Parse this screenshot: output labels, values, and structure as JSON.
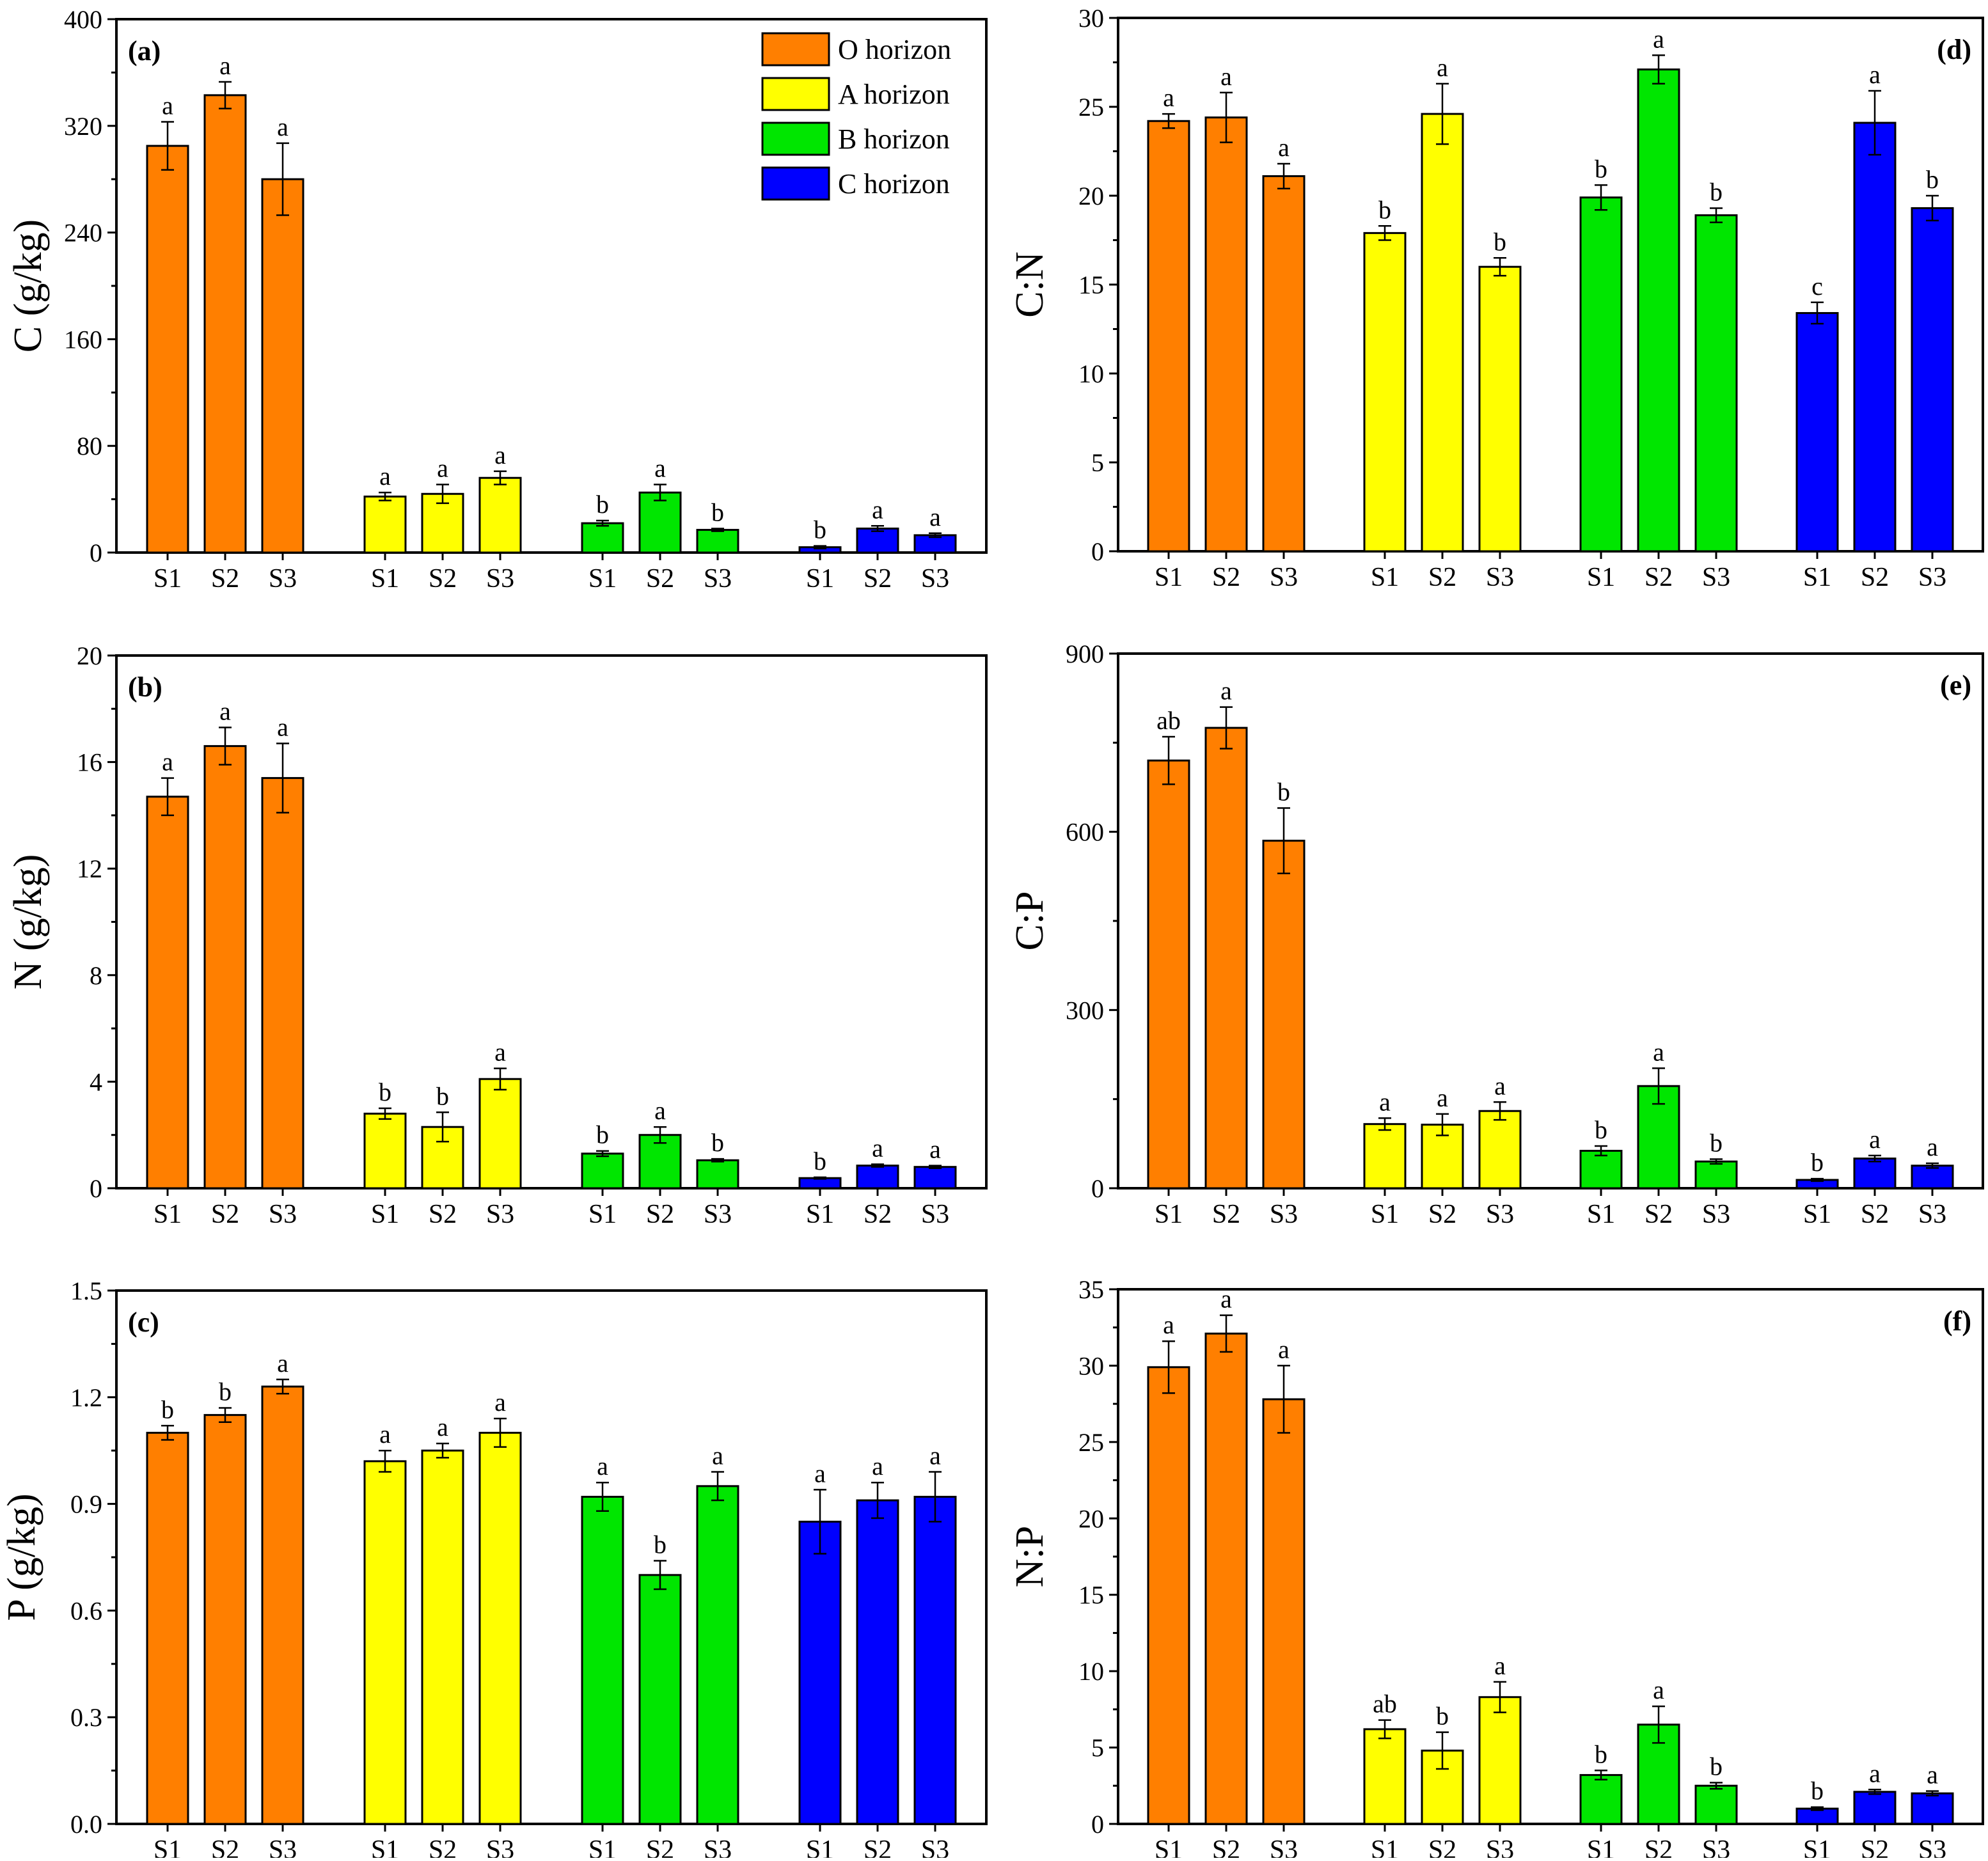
{
  "groups": [
    "O horizon",
    "A horizon",
    "B horizon",
    "C horizon"
  ],
  "sites": [
    "S1",
    "S2",
    "S3"
  ],
  "colors": {
    "O horizon": "#ff7f00",
    "A horizon": "#ffff00",
    "B horizon": "#00e600",
    "C horizon": "#0000ff"
  },
  "legend": [
    "O horizon",
    "A horizon",
    "B horizon",
    "C horizon"
  ],
  "chart_data": [
    {
      "id": "a",
      "tag": "(a)",
      "type": "bar",
      "ylabel": "C (g/kg)",
      "ylim": [
        0,
        400
      ],
      "yticks": [
        "0",
        "80",
        "160",
        "240",
        "320",
        "400"
      ],
      "categories": [
        "S1",
        "S2",
        "S3"
      ],
      "series": [
        {
          "name": "O horizon",
          "values": [
            305,
            343,
            280
          ],
          "errors": [
            18,
            10,
            27
          ],
          "labels": [
            "a",
            "a",
            "a"
          ]
        },
        {
          "name": "A horizon",
          "values": [
            42,
            44,
            56
          ],
          "errors": [
            3,
            7,
            5
          ],
          "labels": [
            "a",
            "a",
            "a"
          ]
        },
        {
          "name": "B horizon",
          "values": [
            22,
            45,
            17
          ],
          "errors": [
            2,
            6,
            1
          ],
          "labels": [
            "b",
            "a",
            "b"
          ]
        },
        {
          "name": "C horizon",
          "values": [
            4,
            18,
            13
          ],
          "errors": [
            1,
            2,
            1.5
          ],
          "labels": [
            "b",
            "a",
            "a"
          ]
        }
      ]
    },
    {
      "id": "b",
      "tag": "(b)",
      "type": "bar",
      "ylabel": "N (g/kg)",
      "ylim": [
        0,
        20
      ],
      "yticks": [
        "0",
        "4",
        "8",
        "12",
        "16",
        "20"
      ],
      "categories": [
        "S1",
        "S2",
        "S3"
      ],
      "series": [
        {
          "name": "O horizon",
          "values": [
            14.7,
            16.6,
            15.4
          ],
          "errors": [
            0.7,
            0.7,
            1.3
          ],
          "labels": [
            "a",
            "a",
            "a"
          ]
        },
        {
          "name": "A horizon",
          "values": [
            2.8,
            2.3,
            4.1
          ],
          "errors": [
            0.2,
            0.55,
            0.4
          ],
          "labels": [
            "b",
            "b",
            "a"
          ]
        },
        {
          "name": "B horizon",
          "values": [
            1.3,
            2.0,
            1.05
          ],
          "errors": [
            0.1,
            0.3,
            0.05
          ],
          "labels": [
            "b",
            "a",
            "b"
          ]
        },
        {
          "name": "C horizon",
          "values": [
            0.38,
            0.85,
            0.8
          ],
          "errors": [
            0.03,
            0.05,
            0.05
          ],
          "labels": [
            "b",
            "a",
            "a"
          ]
        }
      ]
    },
    {
      "id": "c",
      "tag": "(c)",
      "type": "bar",
      "ylabel": "P (g/kg)",
      "ylim": [
        0,
        1.5
      ],
      "yticks": [
        "0.0",
        "0.3",
        "0.6",
        "0.9",
        "1.2",
        "1.5"
      ],
      "categories": [
        "S1",
        "S2",
        "S3"
      ],
      "series": [
        {
          "name": "O horizon",
          "values": [
            1.1,
            1.15,
            1.23
          ],
          "errors": [
            0.02,
            0.02,
            0.02
          ],
          "labels": [
            "b",
            "b",
            "a"
          ]
        },
        {
          "name": "A horizon",
          "values": [
            1.02,
            1.05,
            1.1
          ],
          "errors": [
            0.03,
            0.02,
            0.04
          ],
          "labels": [
            "a",
            "a",
            "a"
          ]
        },
        {
          "name": "B horizon",
          "values": [
            0.92,
            0.7,
            0.95
          ],
          "errors": [
            0.04,
            0.04,
            0.04
          ],
          "labels": [
            "a",
            "b",
            "a"
          ]
        },
        {
          "name": "C horizon",
          "values": [
            0.85,
            0.91,
            0.92
          ],
          "errors": [
            0.09,
            0.05,
            0.07
          ],
          "labels": [
            "a",
            "a",
            "a"
          ]
        }
      ]
    },
    {
      "id": "d",
      "tag": "(d)",
      "type": "bar",
      "ylabel": "C:N",
      "ylim": [
        0,
        30
      ],
      "yticks": [
        "0",
        "5",
        "10",
        "15",
        "20",
        "25",
        "30"
      ],
      "categories": [
        "S1",
        "S2",
        "S3"
      ],
      "series": [
        {
          "name": "O horizon",
          "values": [
            24.2,
            24.4,
            21.1
          ],
          "errors": [
            0.4,
            1.4,
            0.7
          ],
          "labels": [
            "a",
            "a",
            "a"
          ]
        },
        {
          "name": "A horizon",
          "values": [
            17.9,
            24.6,
            16.0
          ],
          "errors": [
            0.4,
            1.7,
            0.5
          ],
          "labels": [
            "b",
            "a",
            "b"
          ]
        },
        {
          "name": "B horizon",
          "values": [
            19.9,
            27.1,
            18.9
          ],
          "errors": [
            0.7,
            0.8,
            0.4
          ],
          "labels": [
            "b",
            "a",
            "b"
          ]
        },
        {
          "name": "C horizon",
          "values": [
            13.4,
            24.1,
            19.3
          ],
          "errors": [
            0.6,
            1.8,
            0.7
          ],
          "labels": [
            "c",
            "a",
            "b"
          ]
        }
      ]
    },
    {
      "id": "e",
      "tag": "(e)",
      "type": "bar",
      "ylabel": "C:P",
      "ylim": [
        0,
        900
      ],
      "yticks": [
        "0",
        "300",
        "600",
        "900"
      ],
      "categories": [
        "S1",
        "S2",
        "S3"
      ],
      "series": [
        {
          "name": "O horizon",
          "values": [
            720,
            775,
            585
          ],
          "errors": [
            40,
            35,
            55
          ],
          "labels": [
            "ab",
            "a",
            "b"
          ]
        },
        {
          "name": "A horizon",
          "values": [
            108,
            107,
            130
          ],
          "errors": [
            10,
            18,
            15
          ],
          "labels": [
            "a",
            "a",
            "a"
          ]
        },
        {
          "name": "B horizon",
          "values": [
            63,
            172,
            45
          ],
          "errors": [
            8,
            30,
            4
          ],
          "labels": [
            "b",
            "a",
            "b"
          ]
        },
        {
          "name": "C horizon",
          "values": [
            14,
            50,
            38
          ],
          "errors": [
            2,
            5,
            4
          ],
          "labels": [
            "b",
            "a",
            "a"
          ]
        }
      ]
    },
    {
      "id": "f",
      "tag": "(f)",
      "type": "bar",
      "ylabel": "N:P",
      "ylim": [
        0,
        35
      ],
      "yticks": [
        "0",
        "5",
        "10",
        "15",
        "20",
        "25",
        "30",
        "35"
      ],
      "categories": [
        "S1",
        "S2",
        "S3"
      ],
      "series": [
        {
          "name": "O horizon",
          "values": [
            29.9,
            32.1,
            27.8
          ],
          "errors": [
            1.7,
            1.2,
            2.2
          ],
          "labels": [
            "a",
            "a",
            "a"
          ]
        },
        {
          "name": "A horizon",
          "values": [
            6.2,
            4.8,
            8.3
          ],
          "errors": [
            0.6,
            1.2,
            1.0
          ],
          "labels": [
            "ab",
            "b",
            "a"
          ]
        },
        {
          "name": "B horizon",
          "values": [
            3.2,
            6.5,
            2.5
          ],
          "errors": [
            0.3,
            1.2,
            0.2
          ],
          "labels": [
            "b",
            "a",
            "b"
          ]
        },
        {
          "name": "C horizon",
          "values": [
            1.0,
            2.1,
            2.0
          ],
          "errors": [
            0.1,
            0.15,
            0.15
          ],
          "labels": [
            "b",
            "a",
            "a"
          ]
        }
      ]
    }
  ]
}
